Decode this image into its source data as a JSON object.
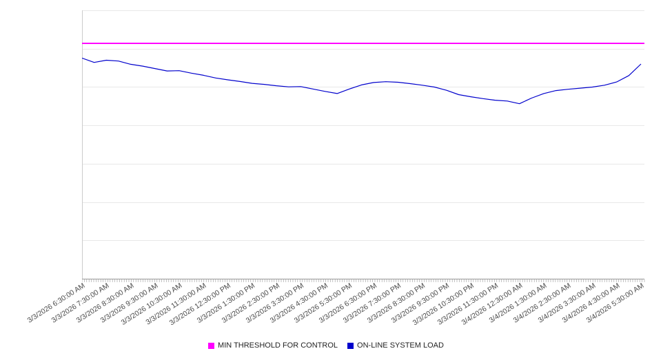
{
  "chart_data": {
    "type": "line",
    "title": "",
    "x_labels": [
      "3/3/2026 6:30:00 AM",
      "3/3/2026 7:30:00 AM",
      "3/3/2026 8:30:00 AM",
      "3/3/2026 9:30:00 AM",
      "3/3/2026 10:30:00 AM",
      "3/3/2026 11:30:00 AM",
      "3/3/2026 12:30:00 PM",
      "3/3/2026 1:30:00 PM",
      "3/3/2026 2:30:00 PM",
      "3/3/2026 3:30:00 PM",
      "3/3/2026 4:30:00 PM",
      "3/3/2026 5:30:00 PM",
      "3/3/2026 6:30:00 PM",
      "3/3/2026 7:30:00 PM",
      "3/3/2026 8:30:00 PM",
      "3/3/2026 9:30:00 PM",
      "3/3/2026 10:30:00 PM",
      "3/3/2026 11:30:00 PM",
      "3/4/2026 12:30:00 AM",
      "3/4/2026 1:30:00 AM",
      "3/4/2026 2:30:00 AM",
      "3/4/2026 3:30:00 AM",
      "3/4/2026 4:30:00 AM",
      "3/4/2026 5:30:00 AM"
    ],
    "x_axis": {
      "unit": "datetime",
      "label_interval_hours": 1,
      "minor_ticks": true
    },
    "ylim": [
      0,
      100
    ],
    "y_gridline_intervals": 7,
    "y_axis_labels_visible": false,
    "grid": {
      "horizontal": true,
      "vertical": false
    },
    "legend_position": "bottom-center",
    "axis_color": "#999999",
    "gridline_color": "#e8e8e8",
    "series": [
      {
        "name": "MIN THRESHOLD FOR CONTROL",
        "type": "constant-threshold",
        "color": "#ff00ff",
        "value": 87.7
      },
      {
        "name": "ON-LINE SYSTEM LOAD",
        "type": "line",
        "color": "#0000cc",
        "t_start_hours": 0,
        "t_step_hours": 0.5,
        "t_end_hours": 23,
        "values": [
          82.2,
          80.6,
          81.4,
          81.1,
          79.9,
          79.2,
          78.3,
          77.4,
          77.5,
          76.6,
          75.8,
          74.8,
          74.1,
          73.5,
          72.8,
          72.4,
          71.9,
          71.5,
          71.6,
          70.7,
          69.8,
          69.0,
          70.7,
          72.2,
          73.1,
          73.4,
          73.2,
          72.7,
          72.1,
          71.4,
          70.2,
          68.6,
          67.8,
          67.1,
          66.5,
          66.2,
          65.2,
          67.3,
          69.0,
          70.1,
          70.6,
          71.0,
          71.4,
          72.1,
          73.3,
          75.7,
          80.0
        ]
      }
    ]
  }
}
